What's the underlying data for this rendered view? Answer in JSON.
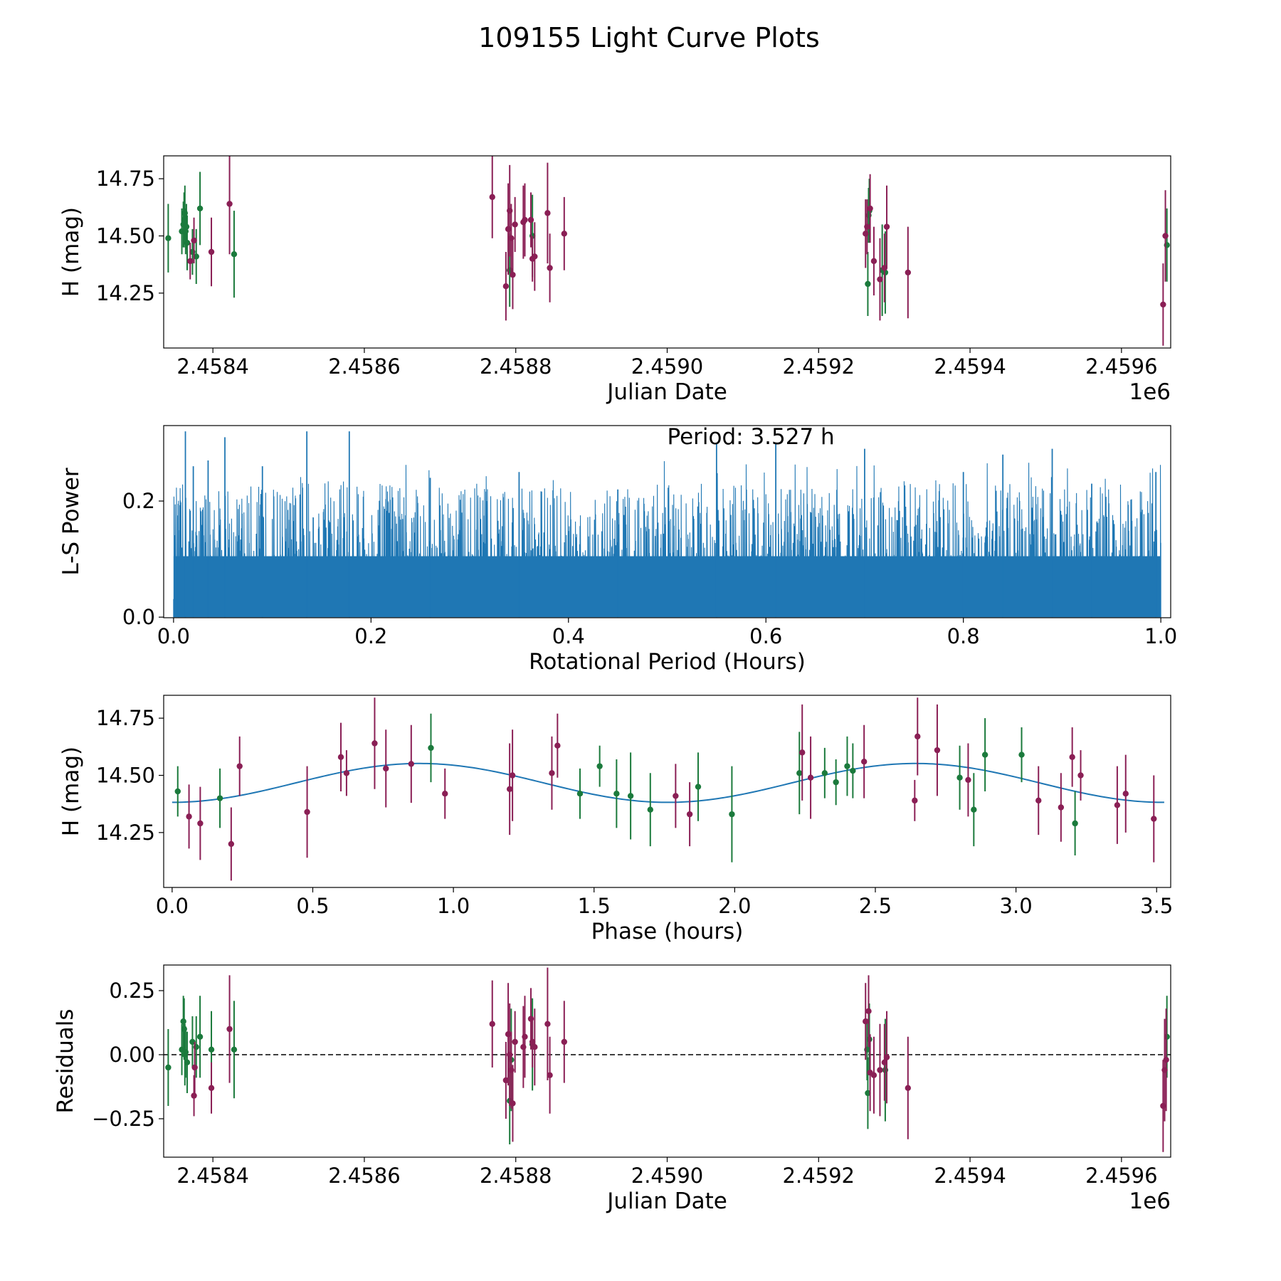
{
  "title": "109155 Light Curve Plots",
  "colors": {
    "green": "#1b7a3c",
    "purple": "#8a1f55",
    "blue": "#1f77b4",
    "axis": "#000000"
  },
  "chart_data": [
    {
      "id": "lightcurve",
      "type": "scatter",
      "title": "",
      "xlabel": "Julian Date",
      "ylabel": "H (mag)",
      "xlim": [
        2458335,
        2459665
      ],
      "ylim": [
        14.01,
        14.85
      ],
      "x_ticks": [
        2458400,
        2458600,
        2458800,
        2459000,
        2459200,
        2459400,
        2459600
      ],
      "x_tick_labels": [
        "2.4584",
        "2.4586",
        "2.4588",
        "2.4590",
        "2.4592",
        "2.4594",
        "2.4596"
      ],
      "x_offset_label": "1e6",
      "y_ticks": [
        14.25,
        14.5,
        14.75
      ],
      "y_tick_labels": [
        "14.25",
        "14.50",
        "14.75"
      ],
      "series": [
        {
          "name": "green",
          "color": "#1b7a3c",
          "x": [
            2458341,
            2458359,
            2458361,
            2458362,
            2458363,
            2458364,
            2458365,
            2458366,
            2458373,
            2458378,
            2458383,
            2458428,
            2458792,
            2458822,
            2459265,
            2459266,
            2459267,
            2459284,
            2459288,
            2459660
          ],
          "y": [
            14.49,
            14.52,
            14.55,
            14.57,
            14.6,
            14.52,
            14.54,
            14.47,
            14.43,
            14.41,
            14.62,
            14.42,
            14.35,
            14.5,
            14.29,
            14.59,
            14.61,
            14.35,
            14.34,
            14.46
          ],
          "err": [
            0.15,
            0.1,
            0.1,
            0.12,
            0.12,
            0.1,
            0.1,
            0.12,
            0.1,
            0.12,
            0.16,
            0.19,
            0.16,
            0.18,
            0.14,
            0.12,
            0.14,
            0.2,
            0.18,
            0.16
          ]
        },
        {
          "name": "purple",
          "color": "#8a1f55",
          "x": [
            2458370,
            2458375,
            2458398,
            2458422,
            2458769,
            2458787,
            2458790,
            2458792,
            2458794,
            2458796,
            2458799,
            2458810,
            2458812,
            2458820,
            2458822,
            2458825,
            2458842,
            2458845,
            2458864,
            2459262,
            2459264,
            2459268,
            2459273,
            2459281,
            2459287,
            2459290,
            2459318,
            2459655,
            2459658
          ],
          "y": [
            14.39,
            14.48,
            14.43,
            14.64,
            14.67,
            14.28,
            14.53,
            14.61,
            14.49,
            14.33,
            14.55,
            14.56,
            14.57,
            14.57,
            14.4,
            14.41,
            14.6,
            14.36,
            14.51,
            14.51,
            14.54,
            14.62,
            14.39,
            14.31,
            14.36,
            14.54,
            14.34,
            14.2,
            14.5
          ],
          "err": [
            0.08,
            0.1,
            0.15,
            0.22,
            0.18,
            0.15,
            0.2,
            0.2,
            0.15,
            0.15,
            0.12,
            0.16,
            0.16,
            0.12,
            0.1,
            0.15,
            0.22,
            0.15,
            0.16,
            0.15,
            0.12,
            0.15,
            0.15,
            0.18,
            0.15,
            0.18,
            0.2,
            0.18,
            0.2
          ]
        }
      ]
    },
    {
      "id": "periodogram",
      "type": "line",
      "title": "",
      "xlabel": "Rotational Period (Hours)",
      "ylabel": "L-S Power",
      "xlim": [
        -0.01,
        1.01
      ],
      "ylim": [
        -0.001,
        0.33
      ],
      "x_ticks": [
        0.0,
        0.2,
        0.4,
        0.6,
        0.8,
        1.0
      ],
      "x_tick_labels": [
        "0.0",
        "0.2",
        "0.4",
        "0.6",
        "0.8",
        "1.0"
      ],
      "y_ticks": [
        0.0,
        0.2
      ],
      "y_tick_labels": [
        "0.0",
        "0.2"
      ],
      "annotation": "Period: 3.527 h",
      "series": [
        {
          "name": "L-S power",
          "color": "#1f77b4",
          "x": [
            0.005,
            0.012,
            0.02,
            0.035,
            0.052,
            0.09,
            0.135,
            0.178,
            0.26,
            0.35,
            0.45,
            0.55,
            0.61,
            0.7,
            0.8,
            0.84,
            0.89,
            0.93,
            0.995
          ],
          "y": [
            0.15,
            0.32,
            0.26,
            0.27,
            0.31,
            0.26,
            0.32,
            0.32,
            0.24,
            0.25,
            0.22,
            0.3,
            0.3,
            0.29,
            0.25,
            0.28,
            0.29,
            0.23,
            0.25
          ]
        }
      ]
    },
    {
      "id": "phased",
      "type": "scatter",
      "title": "",
      "xlabel": "Phase (hours)",
      "ylabel": "H (mag)",
      "xlim": [
        -0.03,
        3.55
      ],
      "ylim": [
        14.01,
        14.85
      ],
      "x_ticks": [
        0.0,
        0.5,
        1.0,
        1.5,
        2.0,
        2.5,
        3.0,
        3.5
      ],
      "x_tick_labels": [
        "0.0",
        "0.5",
        "1.0",
        "1.5",
        "2.0",
        "2.5",
        "3.0",
        "3.5"
      ],
      "y_ticks": [
        14.25,
        14.5,
        14.75
      ],
      "y_tick_labels": [
        "14.25",
        "14.50",
        "14.75"
      ],
      "fit": {
        "name": "sinusoid",
        "color": "#1f77b4",
        "mean": 14.467,
        "amplitude": 0.085,
        "period": 1.7635,
        "peak_phase": 0.88,
        "x_range": [
          0.0,
          3.527
        ]
      },
      "series": [
        {
          "name": "green",
          "color": "#1b7a3c",
          "x": [
            0.02,
            0.17,
            0.92,
            1.45,
            1.52,
            1.58,
            1.63,
            1.7,
            1.87,
            1.99,
            2.23,
            2.32,
            2.36,
            2.4,
            2.42,
            2.8,
            2.85,
            2.89,
            3.02,
            3.21
          ],
          "y": [
            14.43,
            14.4,
            14.62,
            14.42,
            14.54,
            14.42,
            14.41,
            14.35,
            14.45,
            14.33,
            14.51,
            14.51,
            14.47,
            14.54,
            14.52,
            14.49,
            14.35,
            14.59,
            14.59,
            14.29
          ],
          "err": [
            0.11,
            0.13,
            0.15,
            0.11,
            0.09,
            0.15,
            0.19,
            0.16,
            0.15,
            0.21,
            0.18,
            0.11,
            0.1,
            0.13,
            0.12,
            0.14,
            0.16,
            0.16,
            0.12,
            0.14
          ]
        },
        {
          "name": "purple",
          "color": "#8a1f55",
          "x": [
            0.06,
            0.1,
            0.21,
            0.24,
            0.48,
            0.6,
            0.62,
            0.72,
            0.76,
            0.85,
            0.97,
            1.2,
            1.21,
            1.35,
            1.37,
            1.79,
            1.84,
            2.24,
            2.27,
            2.46,
            2.64,
            2.65,
            2.72,
            2.83,
            3.08,
            3.16,
            3.2,
            3.23,
            3.36,
            3.39,
            3.49
          ],
          "y": [
            14.32,
            14.29,
            14.2,
            14.54,
            14.34,
            14.58,
            14.51,
            14.64,
            14.53,
            14.55,
            14.42,
            14.44,
            14.5,
            14.51,
            14.63,
            14.41,
            14.33,
            14.6,
            14.49,
            14.56,
            14.39,
            14.67,
            14.61,
            14.48,
            14.39,
            14.36,
            14.58,
            14.5,
            14.37,
            14.42,
            14.31
          ],
          "err": [
            0.14,
            0.16,
            0.16,
            0.13,
            0.2,
            0.15,
            0.1,
            0.2,
            0.17,
            0.17,
            0.11,
            0.2,
            0.2,
            0.16,
            0.14,
            0.14,
            0.14,
            0.21,
            0.18,
            0.16,
            0.09,
            0.17,
            0.2,
            0.16,
            0.15,
            0.15,
            0.13,
            0.11,
            0.17,
            0.17,
            0.19
          ]
        }
      ]
    },
    {
      "id": "residuals",
      "type": "scatter",
      "title": "",
      "xlabel": "Julian Date",
      "ylabel": "Residuals",
      "xlim": [
        2458335,
        2459665
      ],
      "ylim": [
        -0.4,
        0.35
      ],
      "x_ticks": [
        2458400,
        2458600,
        2458800,
        2459000,
        2459200,
        2459400,
        2459600
      ],
      "x_tick_labels": [
        "2.4584",
        "2.4586",
        "2.4588",
        "2.4590",
        "2.4592",
        "2.4594",
        "2.4596"
      ],
      "x_offset_label": "1e6",
      "y_ticks": [
        -0.25,
        0.0,
        0.25
      ],
      "y_tick_labels": [
        "−0.25",
        "0.00",
        "0.25"
      ],
      "reference_line": 0.0,
      "series": [
        {
          "name": "green",
          "color": "#1b7a3c",
          "x": [
            2458341,
            2458359,
            2458361,
            2458362,
            2458363,
            2458364,
            2458366,
            2458373,
            2458378,
            2458383,
            2458398,
            2458428,
            2458792,
            2458794,
            2458822,
            2459264,
            2459265,
            2459267,
            2459288,
            2459660
          ],
          "y": [
            -0.05,
            0.02,
            0.13,
            0.1,
            0.0,
            0.01,
            -0.03,
            0.05,
            0.03,
            0.07,
            0.02,
            0.02,
            -0.18,
            -0.02,
            0.04,
            0.02,
            -0.15,
            0.06,
            -0.06,
            0.07
          ],
          "err": [
            0.15,
            0.1,
            0.1,
            0.12,
            0.12,
            0.1,
            0.12,
            0.1,
            0.12,
            0.16,
            0.15,
            0.19,
            0.17,
            0.2,
            0.18,
            0.12,
            0.14,
            0.14,
            0.2,
            0.16
          ]
        },
        {
          "name": "purple",
          "color": "#8a1f55",
          "x": [
            2458375,
            2458376,
            2458398,
            2458422,
            2458769,
            2458787,
            2458790,
            2458792,
            2458794,
            2458796,
            2458799,
            2458810,
            2458812,
            2458820,
            2458822,
            2458825,
            2458842,
            2458845,
            2458864,
            2459262,
            2459266,
            2459268,
            2459273,
            2459281,
            2459287,
            2459290,
            2459318,
            2459655,
            2459657,
            2459659
          ],
          "y": [
            -0.16,
            -0.05,
            -0.13,
            0.1,
            0.12,
            -0.1,
            0.08,
            0.0,
            -0.06,
            -0.19,
            0.05,
            0.03,
            0.07,
            0.14,
            0.05,
            0.03,
            0.12,
            -0.08,
            0.05,
            0.13,
            0.17,
            -0.07,
            -0.08,
            -0.06,
            -0.03,
            -0.01,
            -0.13,
            -0.2,
            -0.06,
            -0.02
          ],
          "err": [
            0.08,
            0.1,
            0.1,
            0.21,
            0.17,
            0.15,
            0.2,
            0.2,
            0.15,
            0.15,
            0.12,
            0.16,
            0.16,
            0.12,
            0.1,
            0.15,
            0.22,
            0.15,
            0.16,
            0.15,
            0.14,
            0.15,
            0.15,
            0.18,
            0.15,
            0.18,
            0.2,
            0.18,
            0.2,
            0.2
          ]
        }
      ]
    }
  ]
}
